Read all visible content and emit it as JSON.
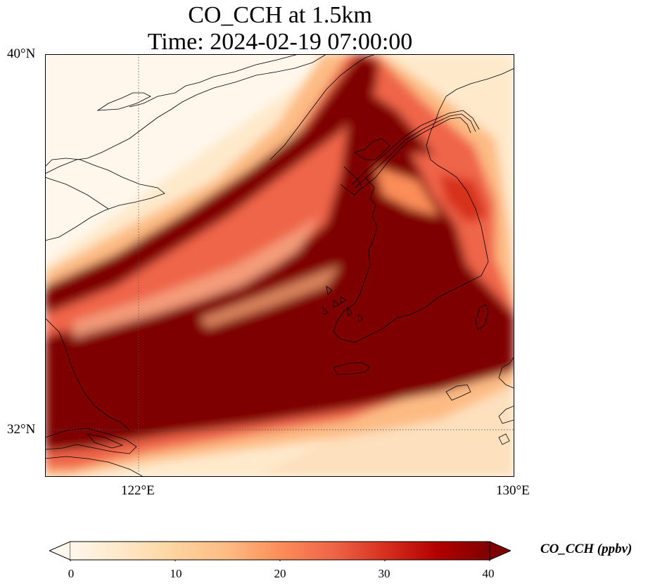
{
  "title": {
    "line1": "CO_CCH at 1.5km",
    "line2": "Time: 2024-02-19 07:00:00"
  },
  "map": {
    "lon_range": [
      119,
      134
    ],
    "lat_range": [
      30.6,
      40
    ],
    "gridlines": {
      "lon": [
        "122°E",
        "130°E"
      ],
      "lat": [
        "40°N",
        "32°N"
      ]
    }
  },
  "colorbar": {
    "label": "CO_CCH (ppbv)",
    "ticks": [
      "0",
      "10",
      "20",
      "30",
      "40"
    ],
    "range": [
      0,
      40
    ],
    "colormap": "OrRd",
    "colors": [
      "#fff7ec",
      "#fee8c8",
      "#fdd49e",
      "#fdbb84",
      "#fc8d59",
      "#ef6548",
      "#d7301f",
      "#b30000",
      "#7f0000"
    ],
    "extend": "both"
  }
}
